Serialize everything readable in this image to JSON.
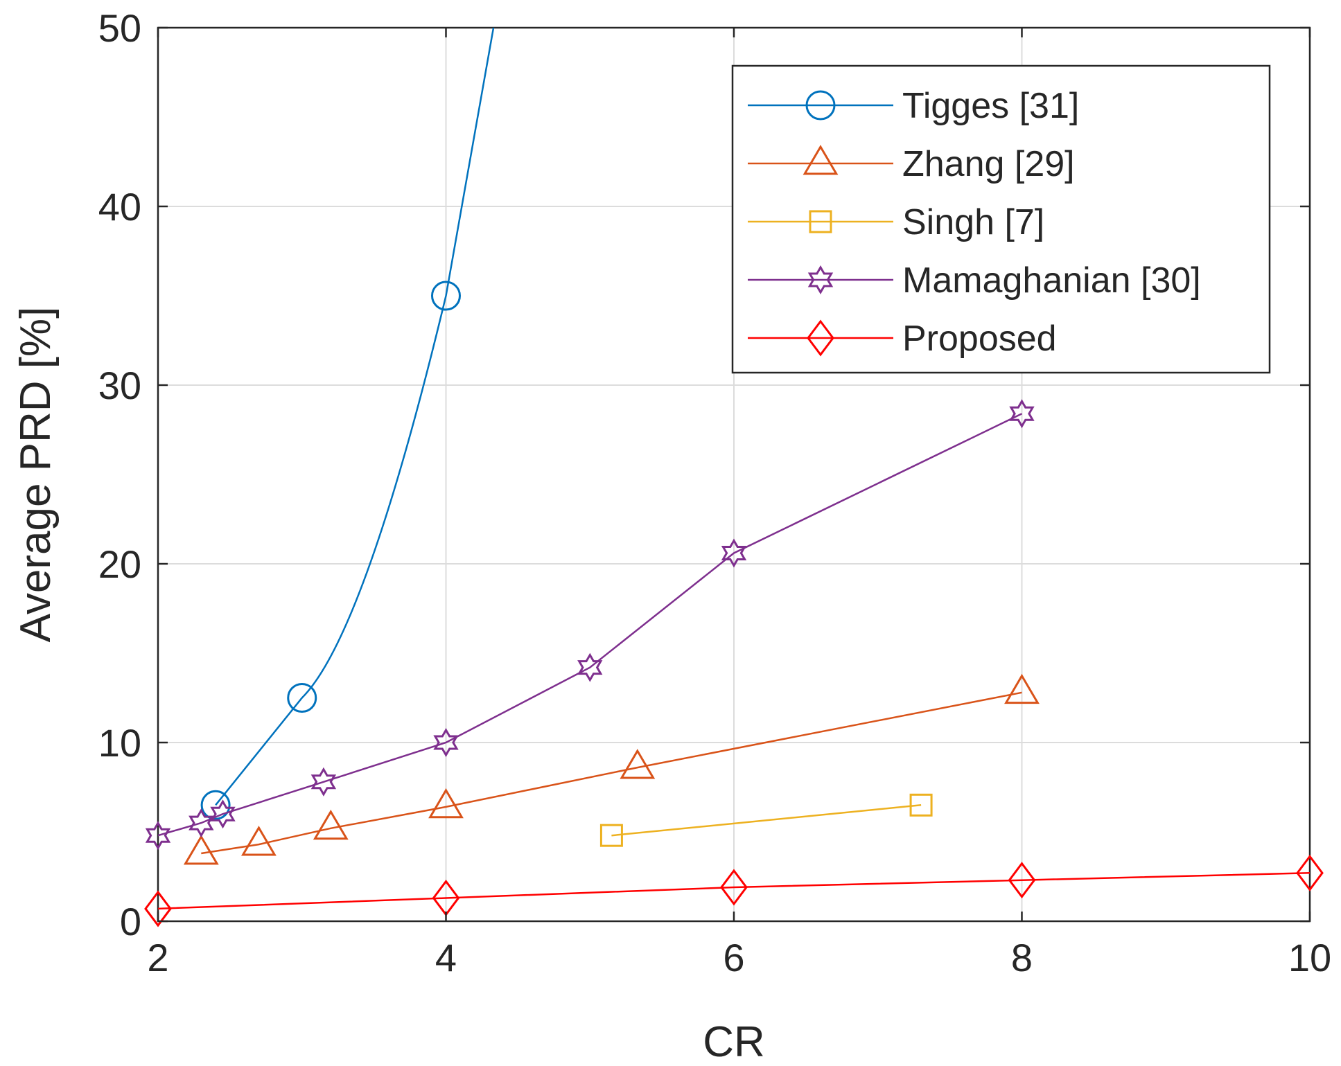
{
  "chart_data": {
    "type": "line",
    "title": "",
    "xlabel": "CR",
    "ylabel": "Average PRD [%]",
    "xlim": [
      2,
      10
    ],
    "ylim": [
      0,
      50
    ],
    "xticks": [
      "2",
      "4",
      "6",
      "8",
      "10"
    ],
    "yticks": [
      "0",
      "10",
      "20",
      "30",
      "40",
      "50"
    ],
    "grid": true,
    "legend_position": "top-right",
    "series": [
      {
        "name": "Tigges [31]",
        "color": "#0072BD",
        "marker": "circle",
        "x": [
          2.4,
          3.0,
          4.0,
          4.33
        ],
        "y": [
          6.5,
          12.5,
          35.0,
          50.0
        ],
        "marker_count": 3
      },
      {
        "name": "Zhang [29]",
        "color": "#D95319",
        "marker": "triangle",
        "x": [
          2.3,
          2.7,
          3.2,
          4.0,
          5.33,
          8.0
        ],
        "y": [
          3.8,
          4.3,
          5.2,
          6.4,
          8.6,
          12.8
        ],
        "marker_count": 6
      },
      {
        "name": "Singh [7]",
        "color": "#EDB120",
        "marker": "square",
        "x": [
          5.15,
          7.3
        ],
        "y": [
          4.8,
          6.5
        ],
        "marker_count": 2
      },
      {
        "name": "Mamaghanian [30]",
        "color": "#7E2F8E",
        "marker": "hexagram",
        "x": [
          2.0,
          2.3,
          2.45,
          3.15,
          4.0,
          5.0,
          6.0,
          8.0
        ],
        "y": [
          4.8,
          5.5,
          6.0,
          7.8,
          10.0,
          14.2,
          20.6,
          28.4
        ],
        "marker_count": 8
      },
      {
        "name": "Proposed",
        "color": "#FF0000",
        "marker": "diamond",
        "x": [
          2.0,
          4.0,
          6.0,
          8.0,
          10.0
        ],
        "y": [
          0.7,
          1.3,
          1.9,
          2.3,
          2.7
        ],
        "marker_count": 5
      }
    ]
  }
}
